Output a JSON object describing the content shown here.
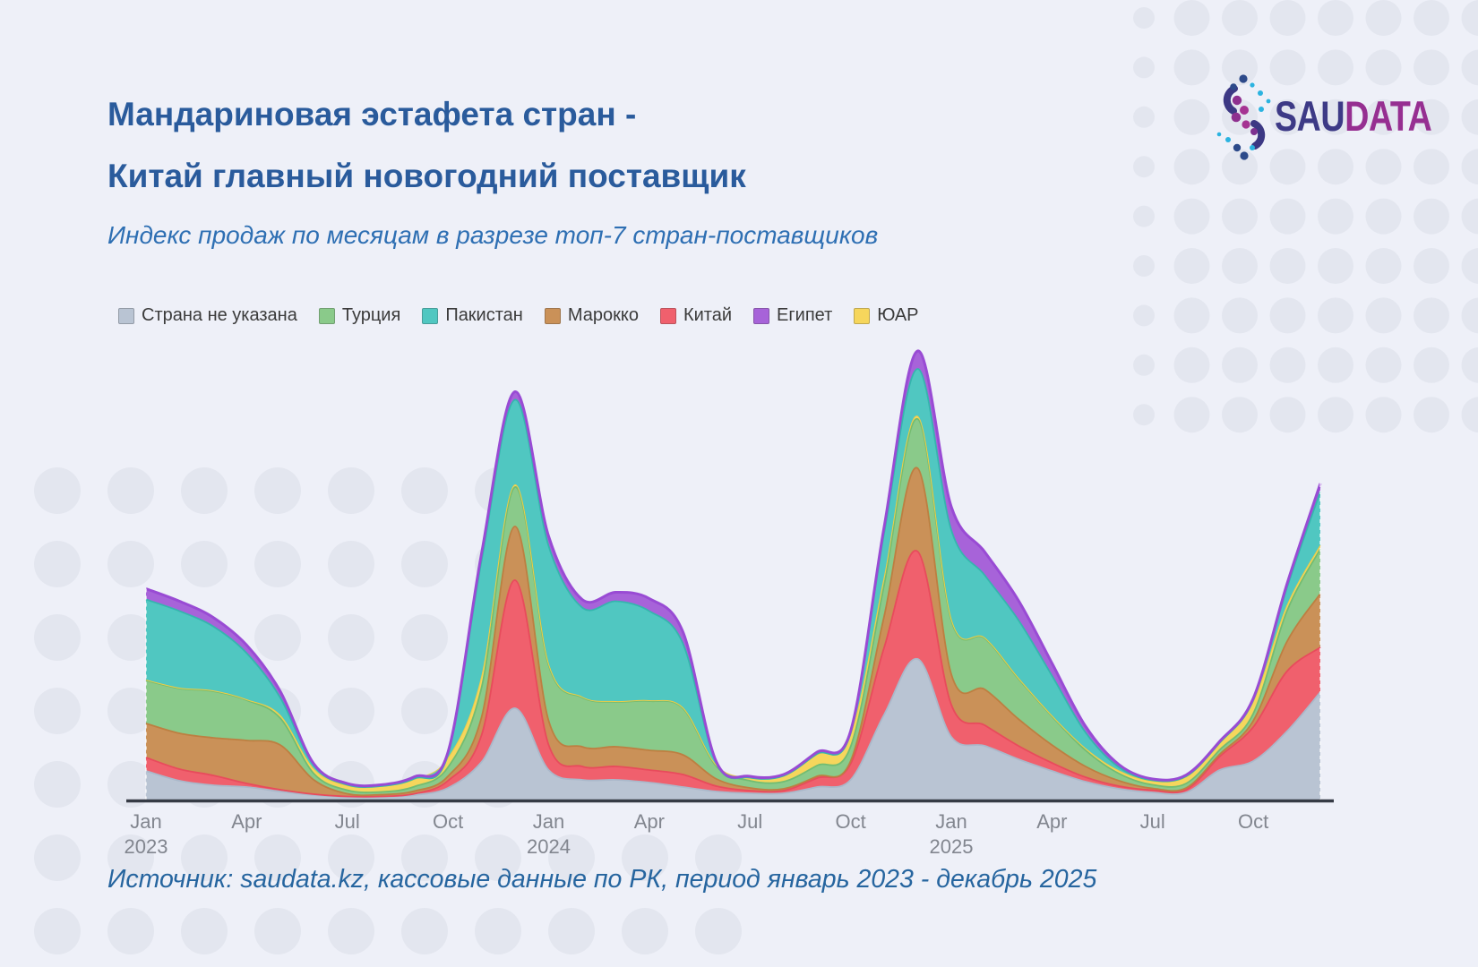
{
  "header": {
    "title_line1": "Мандариновая эстафета стран -",
    "title_line2": "Китай главный новогодний поставщик",
    "subtitle": "Индекс продаж по месяцам в разрезе топ-7 стран-поставщиков"
  },
  "logo": {
    "text_part1": "SAU",
    "text_part2": "DATA"
  },
  "legend": {
    "items": [
      {
        "label": "Страна не указана",
        "color": "#b9c4d3"
      },
      {
        "label": "Турция",
        "color": "#8aca8a"
      },
      {
        "label": "Пакистан",
        "color": "#50c7c1"
      },
      {
        "label": "Марокко",
        "color": "#ca9158"
      },
      {
        "label": "Китай",
        "color": "#f0606d"
      },
      {
        "label": "Египет",
        "color": "#a763d9"
      },
      {
        "label": "ЮАР",
        "color": "#f6d65c"
      }
    ]
  },
  "source_note": "Источник: saudata.kz, кассовые данные по РК, период январь 2023 - декабрь 2025",
  "chart_data": {
    "type": "area",
    "stacked": true,
    "x_start": "2023-01",
    "x_end": "2025-12",
    "months_count": 36,
    "ylabel": "",
    "xlabel": "",
    "legend_position": "top",
    "grid": false,
    "x_ticks": [
      {
        "month_index": 0,
        "label": "Jan",
        "year": "2023"
      },
      {
        "month_index": 3,
        "label": "Apr"
      },
      {
        "month_index": 6,
        "label": "Jul"
      },
      {
        "month_index": 9,
        "label": "Oct"
      },
      {
        "month_index": 12,
        "label": "Jan",
        "year": "2024"
      },
      {
        "month_index": 15,
        "label": "Apr"
      },
      {
        "month_index": 18,
        "label": "Jul"
      },
      {
        "month_index": 21,
        "label": "Oct"
      },
      {
        "month_index": 24,
        "label": "Jan",
        "year": "2025"
      },
      {
        "month_index": 27,
        "label": "Apr"
      },
      {
        "month_index": 30,
        "label": "Jul"
      },
      {
        "month_index": 33,
        "label": "Oct"
      }
    ],
    "series": [
      {
        "name": "Страна не указана",
        "color": "#b9c4d3",
        "stroke": "#aab8ca",
        "stroke_width": 1.8,
        "values": [
          32,
          21,
          16,
          14,
          9,
          5,
          3,
          3,
          5,
          13,
          42,
          102,
          33,
          22,
          22,
          19,
          14,
          9,
          7,
          7,
          14,
          22,
          95,
          157,
          70,
          60,
          45,
          32,
          20,
          12,
          8,
          8,
          33,
          43,
          76,
          120
        ]
      },
      {
        "name": "Китай",
        "color": "#f0606d",
        "stroke": "#e84b5c",
        "stroke_width": 1.8,
        "values": [
          15,
          13,
          11,
          4,
          2,
          1,
          0.5,
          0.5,
          1.5,
          8,
          30,
          143,
          28,
          15,
          15,
          14,
          14,
          6,
          3,
          3,
          10,
          18,
          75,
          120,
          36,
          23,
          15,
          9,
          5,
          3,
          2.5,
          3,
          15,
          38,
          67,
          50
        ]
      },
      {
        "name": "Марокко",
        "color": "#ca9158",
        "stroke": "#bd7f41",
        "stroke_width": 1.8,
        "values": [
          38,
          40,
          42,
          48,
          50,
          16,
          3,
          2,
          3,
          5,
          20,
          60,
          27,
          22,
          22,
          22,
          22,
          8,
          3,
          2,
          2,
          3,
          35,
          93,
          34,
          40,
          30,
          20,
          12,
          6,
          2,
          2,
          2.5,
          7,
          33,
          60
        ]
      },
      {
        "name": "Турция",
        "color": "#8aca8a",
        "stroke": "#72bc72",
        "stroke_width": 1.8,
        "values": [
          48,
          50,
          52,
          45,
          30,
          7,
          4,
          3,
          5,
          10,
          33,
          44,
          62,
          55,
          50,
          55,
          52,
          14,
          8,
          8,
          12,
          16,
          35,
          55,
          60,
          57,
          45,
          32,
          18,
          8,
          4,
          5,
          5,
          8,
          34,
          50
        ]
      },
      {
        "name": "ЮАР",
        "color": "#f6d65c",
        "stroke": "#eecd48",
        "stroke_width": 1,
        "values": [
          0.5,
          0.5,
          0.5,
          0.5,
          3,
          5,
          5,
          6,
          8,
          10,
          12,
          2.5,
          1,
          0.5,
          0.5,
          0.5,
          0.5,
          1,
          3,
          6,
          12,
          13,
          8,
          3,
          1,
          0.5,
          0.5,
          0.5,
          2,
          3,
          4,
          7,
          7,
          13,
          6,
          4
        ]
      },
      {
        "name": "Пакистан",
        "color": "#50c7c1",
        "stroke": "#35b5ae",
        "stroke_width": 1.8,
        "values": [
          90,
          86,
          72,
          52,
          20,
          4,
          1,
          0.5,
          1,
          4,
          130,
          95,
          132,
          100,
          112,
          100,
          72,
          2,
          0.5,
          0.5,
          1,
          2,
          50,
          53,
          100,
          70,
          65,
          45,
          18,
          4,
          1,
          1,
          1,
          2,
          20,
          60
        ]
      },
      {
        "name": "Египет",
        "color": "#a763d9",
        "stroke": "#994bd4",
        "stroke_width": 3,
        "values": [
          12,
          11,
          10,
          9,
          7,
          2,
          1.5,
          1.5,
          2,
          3,
          8,
          9,
          11,
          9,
          10,
          14,
          13,
          2,
          1.5,
          1.5,
          2,
          2.5,
          7,
          20,
          26,
          26,
          22,
          14,
          7,
          3,
          1.5,
          1.5,
          1.5,
          2,
          4,
          9
        ]
      }
    ]
  }
}
